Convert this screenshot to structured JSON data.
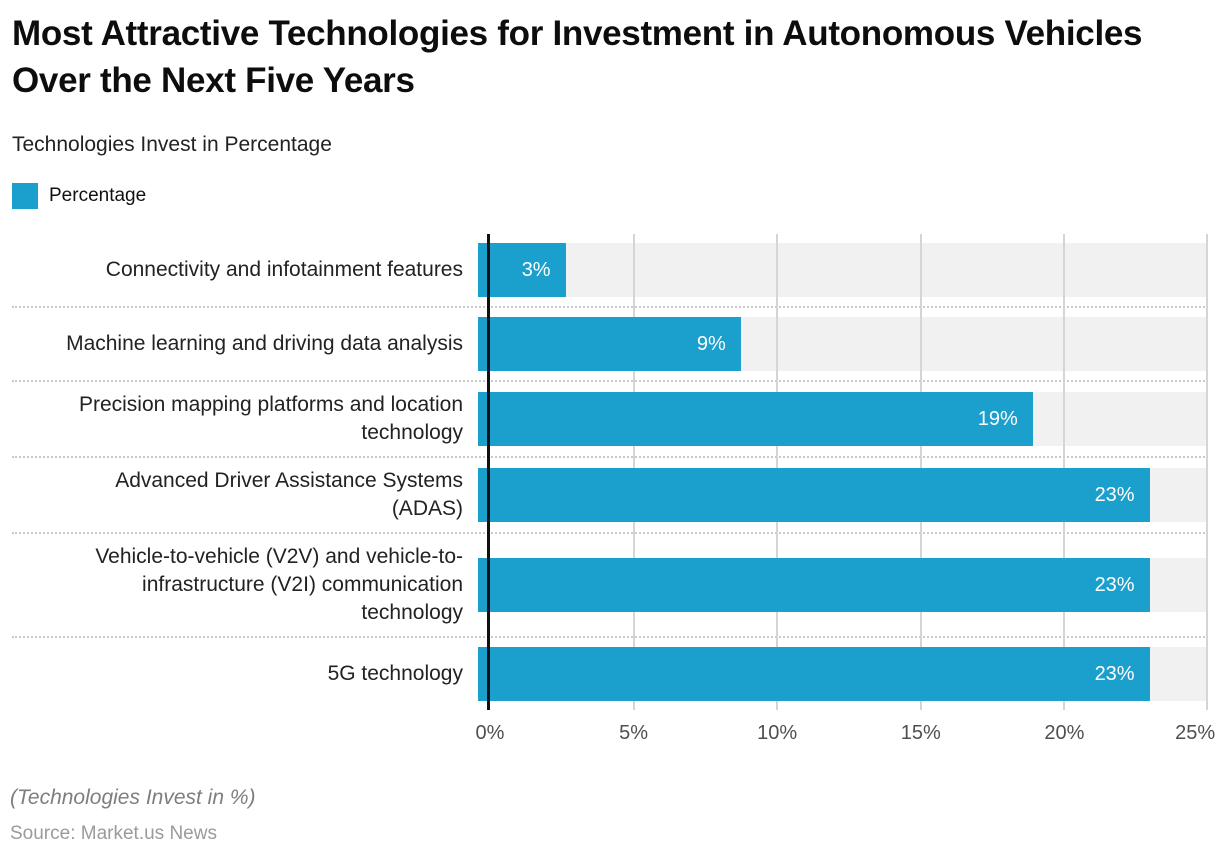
{
  "header": {
    "title": "Most Attractive Technologies for Investment in Autonomous Vehicles Over the Next Five Years",
    "subtitle": "Technologies Invest in Percentage"
  },
  "legend": {
    "label": "Percentage",
    "color": "#1b9fcd"
  },
  "chart_data": {
    "type": "bar",
    "orientation": "horizontal",
    "title": "Most Attractive Technologies for Investment in Autonomous Vehicles Over the Next Five Years",
    "subtitle": "Technologies Invest in Percentage",
    "series_name": "Percentage",
    "categories": [
      "Connectivity and infotainment features",
      "Machine learning and driving data analysis",
      "Precision mapping platforms and location technology",
      "Advanced Driver Assistance Systems (ADAS)",
      "Vehicle-to-vehicle (V2V) and vehicle-to-infrastructure (V2I) communication technology",
      "5G technology"
    ],
    "display_labels": [
      "Connectivity and infotainment features",
      "Machine learning and driving data analysis",
      "Precision mapping platforms and location\ntechnology",
      "Advanced Driver Assistance Systems\n(ADAS)",
      "Vehicle-to-vehicle (V2V) and vehicle-to-\ninfrastructure (V2I) communication\ntechnology",
      "5G technology"
    ],
    "values": [
      3,
      9,
      19,
      23,
      23,
      23
    ],
    "value_labels": [
      "3%",
      "9%",
      "19%",
      "23%",
      "23%",
      "23%"
    ],
    "xlabel": "",
    "ylabel": "",
    "xlim": [
      0,
      25
    ],
    "x_ticks": [
      "0%",
      "5%",
      "10%",
      "15%",
      "20%",
      "25%"
    ],
    "grid": true,
    "legend_position": "top-left",
    "bar_color": "#1b9fcd",
    "track_color": "#f1f1f1"
  },
  "footer": {
    "note": "(Technologies Invest in %)",
    "source": "Source: Market.us News"
  }
}
